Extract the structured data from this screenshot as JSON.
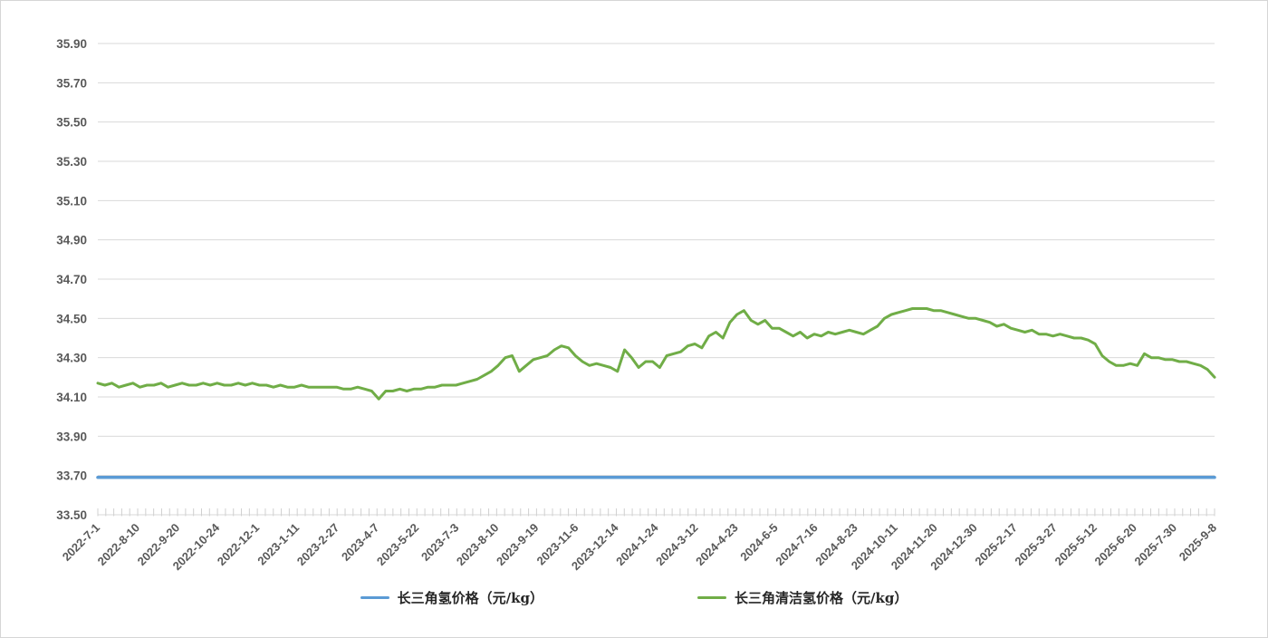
{
  "page": {
    "background_color": "#ffffff",
    "border_color": "#d6d6d6"
  },
  "chart_data": {
    "type": "line",
    "title": "",
    "xlabel": "",
    "ylabel": "",
    "ylim": [
      33.5,
      35.9
    ],
    "ytick_step": 0.2,
    "grid": "horizontal",
    "legend_position": "bottom",
    "axis_style": {
      "label_color": "#595959",
      "grid_color": "#d9d9d9",
      "tick_color": "#d0d0d0",
      "x_label_rotation_deg": -45,
      "minor_ticks_per_interval": 5
    },
    "x_labels": [
      "2022-7-1",
      "2022-8-10",
      "2022-9-20",
      "2022-10-24",
      "2022-12-1",
      "2023-1-11",
      "2023-2-27",
      "2023-4-7",
      "2023-5-22",
      "2023-7-3",
      "2023-8-10",
      "2023-9-19",
      "2023-11-6",
      "2023-12-14",
      "2024-1-24",
      "2024-3-12",
      "2024-4-23",
      "2024-6-5",
      "2024-7-16",
      "2024-8-23",
      "2024-10-11",
      "2024-11-20",
      "2024-12-30",
      "2025-2-17",
      "2025-3-27",
      "2025-5-12",
      "2025-6-20",
      "2025-7-30",
      "2025-9-8"
    ],
    "series": [
      {
        "name": "长三角氢价格（元/kg）",
        "color": "#5b9bd5",
        "stroke_width": 3.5,
        "values": [
          33.69,
          33.69
        ]
      },
      {
        "name": "长三角清洁氢价格（元/kg）",
        "color": "#70ad47",
        "stroke_width": 3,
        "values": [
          34.17,
          34.16,
          34.17,
          34.15,
          34.16,
          34.17,
          34.15,
          34.16,
          34.16,
          34.17,
          34.15,
          34.16,
          34.17,
          34.16,
          34.16,
          34.17,
          34.16,
          34.17,
          34.16,
          34.16,
          34.17,
          34.16,
          34.17,
          34.16,
          34.16,
          34.15,
          34.16,
          34.15,
          34.15,
          34.16,
          34.15,
          34.15,
          34.15,
          34.15,
          34.15,
          34.14,
          34.14,
          34.15,
          34.14,
          34.13,
          34.09,
          34.13,
          34.13,
          34.14,
          34.13,
          34.14,
          34.14,
          34.15,
          34.15,
          34.16,
          34.16,
          34.16,
          34.17,
          34.18,
          34.19,
          34.21,
          34.23,
          34.26,
          34.3,
          34.31,
          34.23,
          34.26,
          34.29,
          34.3,
          34.31,
          34.34,
          34.36,
          34.35,
          34.31,
          34.28,
          34.26,
          34.27,
          34.26,
          34.25,
          34.23,
          34.34,
          34.3,
          34.25,
          34.28,
          34.28,
          34.25,
          34.31,
          34.32,
          34.33,
          34.36,
          34.37,
          34.35,
          34.41,
          34.43,
          34.4,
          34.48,
          34.52,
          34.54,
          34.49,
          34.47,
          34.49,
          34.45,
          34.45,
          34.43,
          34.41,
          34.43,
          34.4,
          34.42,
          34.41,
          34.43,
          34.42,
          34.43,
          34.44,
          34.43,
          34.42,
          34.44,
          34.46,
          34.5,
          34.52,
          34.53,
          34.54,
          34.55,
          34.55,
          34.55,
          34.54,
          34.54,
          34.53,
          34.52,
          34.51,
          34.5,
          34.5,
          34.49,
          34.48,
          34.46,
          34.47,
          34.45,
          34.44,
          34.43,
          34.44,
          34.42,
          34.42,
          34.41,
          34.42,
          34.41,
          34.4,
          34.4,
          34.39,
          34.37,
          34.31,
          34.28,
          34.26,
          34.26,
          34.27,
          34.26,
          34.32,
          34.3,
          34.3,
          34.29,
          34.29,
          34.28,
          34.28,
          34.27,
          34.26,
          34.24,
          34.2
        ]
      }
    ]
  }
}
